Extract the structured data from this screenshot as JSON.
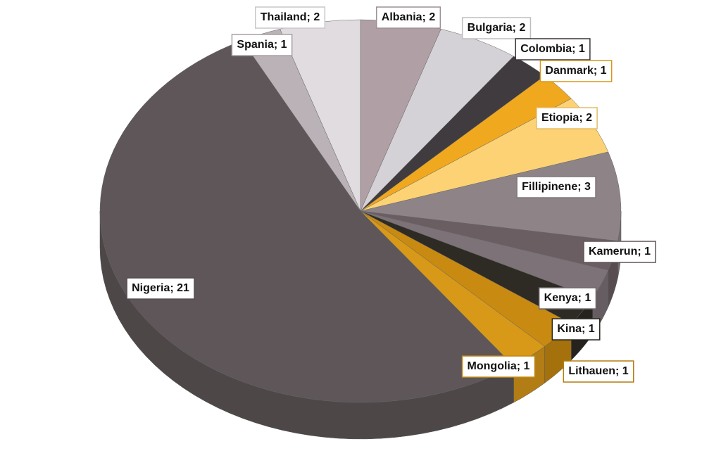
{
  "chart_data": {
    "type": "pie",
    "categories": [
      "Albania",
      "Bulgaria",
      "Colombia",
      "Danmark",
      "Etiopia",
      "Fillipinene",
      "Kamerun",
      "Kenya",
      "Kina",
      "Lithauen",
      "Mongolia",
      "Nigeria",
      "Spania",
      "Thailand"
    ],
    "values": [
      2,
      2,
      1,
      1,
      2,
      3,
      1,
      1,
      1,
      1,
      1,
      21,
      1,
      2
    ],
    "value_labels": [
      "Albania; 2",
      "Bulgaria; 2",
      "Colombia; 1",
      "Danmark; 1",
      "Etiopia; 2",
      "Fillipinene; 3",
      "Kamerun; 1",
      "Kenya; 1",
      "Kina; 1",
      "Lithauen; 1",
      "Mongolia; 1",
      "Nigeria; 21",
      "Spania; 1",
      "Thailand; 2"
    ],
    "colors": [
      "#b0a0a6",
      "#d4d2d6",
      "#403b3e",
      "#f0a81e",
      "#fcd274",
      "#8e8488",
      "#6a5e63",
      "#7c7277",
      "#2e2a24",
      "#c88a10",
      "#d89818",
      "#5e5658",
      "#bab2b6",
      "#e0dce0"
    ]
  }
}
